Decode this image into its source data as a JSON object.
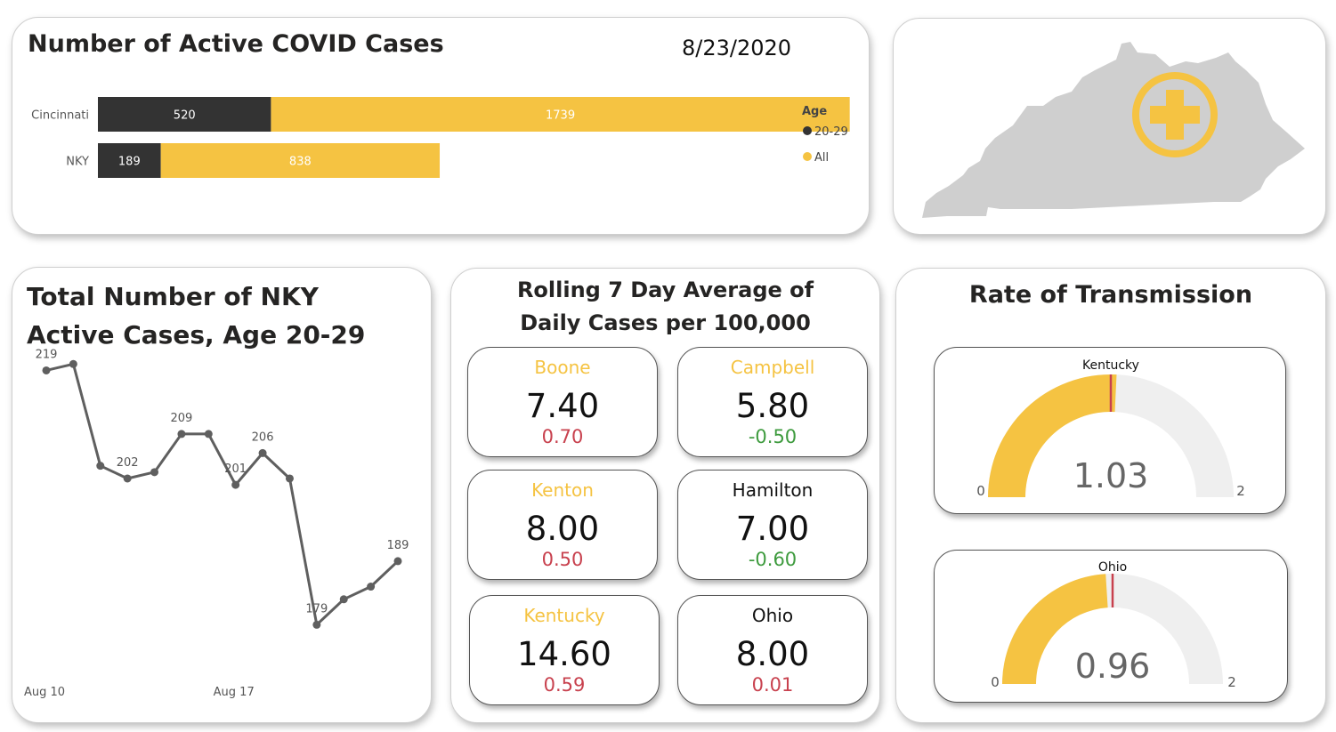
{
  "active_cases": {
    "title": "Number of Active COVID Cases",
    "date": "8/23/2020"
  },
  "nky_line": {
    "title_line1": "Total Number of NKY",
    "title_line2": "Active Cases, Age 20-29"
  },
  "rolling": {
    "title_line1": "Rolling 7 Day Average of",
    "title_line2": "Daily Cases per 100,000",
    "tiles": [
      {
        "name": "Boone",
        "value": "7.40",
        "delta": "0.70",
        "name_color": "#F5C342",
        "delta_color": "#C8414E"
      },
      {
        "name": "Campbell",
        "value": "5.80",
        "delta": "-0.50",
        "name_color": "#F5C342",
        "delta_color": "#3E9B3E"
      },
      {
        "name": "Kenton",
        "value": "8.00",
        "delta": "0.50",
        "name_color": "#F5C342",
        "delta_color": "#C8414E"
      },
      {
        "name": "Hamilton",
        "value": "7.00",
        "delta": "-0.60",
        "name_color": "#111111",
        "delta_color": "#3E9B3E"
      },
      {
        "name": "Kentucky",
        "value": "14.60",
        "delta": "0.59",
        "name_color": "#F5C342",
        "delta_color": "#C8414E"
      },
      {
        "name": "Ohio",
        "value": "8.00",
        "delta": "0.01",
        "name_color": "#111111",
        "delta_color": "#C8414E"
      }
    ]
  },
  "transmission": {
    "title": "Rate of Transmission"
  },
  "map": {
    "icon": "kentucky-map-with-plus-icon"
  },
  "colors": {
    "yellow": "#F5C342",
    "dark": "#333333",
    "line": "#5f5f5f",
    "target": "#C8414E"
  },
  "chart_data": [
    {
      "type": "bar",
      "stacked": true,
      "orientation": "horizontal",
      "categories": [
        "Cincinnati",
        "NKY"
      ],
      "series": [
        {
          "name": "20-29",
          "values": [
            520,
            189
          ],
          "color": "#333333"
        },
        {
          "name": "All",
          "values": [
            1739,
            838
          ],
          "color": "#F5C342"
        }
      ],
      "legend_title": "Age",
      "legend_position": "right",
      "xlim": [
        0,
        2300
      ],
      "grid": false
    },
    {
      "type": "line",
      "x": [
        "2020-08-10",
        "2020-08-11",
        "2020-08-12",
        "2020-08-13",
        "2020-08-14",
        "2020-08-15",
        "2020-08-16",
        "2020-08-17",
        "2020-08-18",
        "2020-08-19",
        "2020-08-20",
        "2020-08-21",
        "2020-08-22",
        "2020-08-23"
      ],
      "xticks": [
        "Aug 10",
        "Aug 17"
      ],
      "series": [
        {
          "values": [
            219,
            220,
            204,
            202,
            203,
            209,
            209,
            201,
            206,
            202,
            179,
            183,
            185,
            189
          ]
        }
      ],
      "labels_shown": [
        {
          "index": 0,
          "text": "219"
        },
        {
          "index": 3,
          "text": "202"
        },
        {
          "index": 5,
          "text": "209"
        },
        {
          "index": 7,
          "text": "201"
        },
        {
          "index": 8,
          "text": "206"
        },
        {
          "index": 10,
          "text": "179"
        },
        {
          "index": 13,
          "text": "189"
        }
      ],
      "ylim": [
        175,
        222
      ],
      "grid": false
    },
    {
      "type": "gauge",
      "gauges": [
        {
          "name": "Kentucky",
          "value": 1.03,
          "value_label": "1.03",
          "target": 1.0,
          "min": 0,
          "max": 2,
          "min_label": "0",
          "max_label": "2"
        },
        {
          "name": "Ohio",
          "value": 0.96,
          "value_label": "0.96",
          "target": 1.0,
          "min": 0,
          "max": 2,
          "min_label": "0",
          "max_label": "2"
        }
      ]
    }
  ]
}
